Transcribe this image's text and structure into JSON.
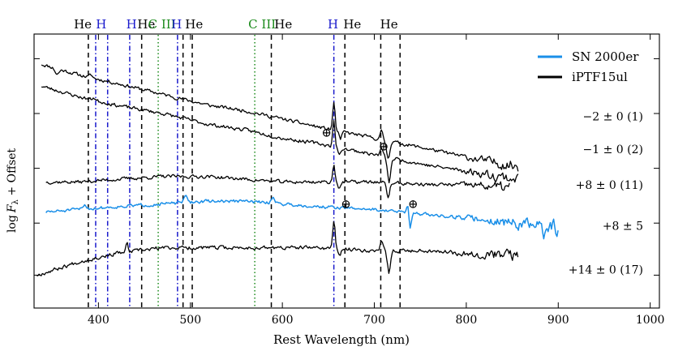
{
  "chart_data": {
    "type": "line",
    "xlabel": "Rest Wavelength (nm)",
    "ylabel": "log Fλ + Offset",
    "ylabel_parts": {
      "prefix": "log",
      "f": "F",
      "sub": "λ",
      "suffix": " + Offset"
    },
    "xlim": [
      330,
      1010
    ],
    "ylim": [
      0,
      100
    ],
    "x_ticks": [
      400,
      500,
      600,
      700,
      800,
      900,
      1000
    ],
    "x_tick_labels": [
      "400",
      "500",
      "600",
      "700",
      "800",
      "900",
      "1000"
    ],
    "y_tick_positions": [
      12,
      31,
      51,
      71,
      91
    ],
    "grid": false,
    "legend": {
      "position": "top-right",
      "entries": [
        {
          "label": "SN 2000er",
          "color": "#1a8fe8"
        },
        {
          "label": "iPTF15ul",
          "color": "#000000"
        }
      ]
    },
    "line_ids": [
      {
        "label": "He",
        "x": 389,
        "color": "#000000",
        "style": "dashed"
      },
      {
        "label": "H",
        "x": 397,
        "color": "#1a1acc",
        "style": "dashdot"
      },
      {
        "label": "H",
        "x": 410,
        "color": "#1a1acc",
        "style": "dashdot"
      },
      {
        "label": "H",
        "x": 434,
        "color": "#1a1acc",
        "style": "dashdot"
      },
      {
        "label": "He",
        "x": 447,
        "color": "#000000",
        "style": "dashed"
      },
      {
        "label": "C III",
        "x": 465,
        "color": "#1a8a1a",
        "style": "dotted"
      },
      {
        "label": "H",
        "x": 486,
        "color": "#1a1acc",
        "style": "dashdot"
      },
      {
        "label": "He",
        "x": 492,
        "color": "#000000",
        "style": "dashed"
      },
      {
        "label": "He",
        "x": 502,
        "color": "#000000",
        "style": "dashed"
      },
      {
        "label": "C III",
        "x": 570,
        "color": "#1a8a1a",
        "style": "dotted"
      },
      {
        "label": "He",
        "x": 588,
        "color": "#000000",
        "style": "dashed"
      },
      {
        "label": "H",
        "x": 656,
        "color": "#1a1acc",
        "style": "dashdot"
      },
      {
        "label": "He",
        "x": 668,
        "color": "#000000",
        "style": "dashed"
      },
      {
        "label": "He",
        "x": 707,
        "color": "#000000",
        "style": "dashed"
      },
      {
        "label": "He",
        "x": 728,
        "color": "#000000",
        "style": "dashed"
      }
    ],
    "line_id_labels": [
      {
        "text": "He",
        "x": 383,
        "color": "#000000"
      },
      {
        "text": "H",
        "x": 403,
        "color": "#1a1acc"
      },
      {
        "text": "H",
        "x": 436,
        "color": "#1a1acc"
      },
      {
        "text": "He",
        "x": 452,
        "color": "#000000"
      },
      {
        "text": "C III",
        "x": 469,
        "color": "#1a8a1a"
      },
      {
        "text": "H",
        "x": 485,
        "color": "#1a1acc"
      },
      {
        "text": "He",
        "x": 504,
        "color": "#000000"
      },
      {
        "text": "C III",
        "x": 578,
        "color": "#1a8a1a"
      },
      {
        "text": "He",
        "x": 601,
        "color": "#000000"
      },
      {
        "text": "H",
        "x": 655,
        "color": "#1a1acc"
      },
      {
        "text": "He",
        "x": 676,
        "color": "#000000"
      },
      {
        "text": "He",
        "x": 716,
        "color": "#000000"
      }
    ],
    "series": [
      {
        "name": "iPTF15ul",
        "epoch_label": "−2 ± 0 (1)",
        "color": "#000000",
        "width": 1.3,
        "noise": 0.55,
        "seed": 11,
        "knots": [
          [
            338,
            89
          ],
          [
            380,
            85
          ],
          [
            420,
            82
          ],
          [
            470,
            78
          ],
          [
            520,
            74
          ],
          [
            560,
            72
          ],
          [
            600,
            69
          ],
          [
            640,
            66
          ],
          [
            700,
            62
          ],
          [
            760,
            58
          ],
          [
            800,
            55
          ],
          [
            850,
            52
          ]
        ],
        "features": [
          [
            355,
            -2.0,
            3
          ],
          [
            392,
            1.0,
            2
          ],
          [
            656,
            10,
            1.8
          ],
          [
            663,
            -3,
            2
          ],
          [
            708,
            3,
            2
          ],
          [
            715,
            -6,
            2.5
          ]
        ],
        "x_range": [
          338,
          857
        ]
      },
      {
        "name": "iPTF15ul",
        "epoch_label": "−1 ± 0 (2)",
        "color": "#000000",
        "width": 1.3,
        "noise": 0.55,
        "seed": 23,
        "knots": [
          [
            338,
            81
          ],
          [
            380,
            77
          ],
          [
            420,
            74
          ],
          [
            470,
            71
          ],
          [
            520,
            67
          ],
          [
            560,
            65
          ],
          [
            600,
            62
          ],
          [
            640,
            60
          ],
          [
            700,
            56
          ],
          [
            760,
            52
          ],
          [
            800,
            50
          ],
          [
            857,
            47
          ]
        ],
        "features": [
          [
            395,
            1.0,
            2
          ],
          [
            656,
            9,
            1.8
          ],
          [
            662,
            -3,
            2
          ],
          [
            708,
            3,
            2
          ],
          [
            716,
            -9,
            2.5
          ]
        ],
        "x_range": [
          338,
          857
        ]
      },
      {
        "name": "iPTF15ul",
        "epoch_label": "+8 ± 0 (11)",
        "color": "#000000",
        "width": 1.3,
        "noise": 0.55,
        "seed": 37,
        "knots": [
          [
            343,
            46
          ],
          [
            380,
            46
          ],
          [
            420,
            47
          ],
          [
            470,
            48
          ],
          [
            520,
            48
          ],
          [
            560,
            47
          ],
          [
            600,
            46
          ],
          [
            640,
            46
          ],
          [
            700,
            46
          ],
          [
            760,
            45
          ],
          [
            800,
            45
          ],
          [
            848,
            44
          ]
        ],
        "features": [
          [
            656,
            6,
            1.8
          ],
          [
            662,
            -2,
            2
          ],
          [
            715,
            -5,
            2.5
          ]
        ],
        "x_range": [
          343,
          848
        ]
      },
      {
        "name": "SN 2000er",
        "epoch_label": "+8 ± 5",
        "color": "#1a8fe8",
        "width": 1.5,
        "noise": 0.5,
        "seed": 51,
        "knots": [
          [
            343,
            35
          ],
          [
            380,
            36
          ],
          [
            420,
            37
          ],
          [
            470,
            38
          ],
          [
            520,
            39
          ],
          [
            560,
            39
          ],
          [
            600,
            38
          ],
          [
            640,
            37
          ],
          [
            700,
            36
          ],
          [
            760,
            34
          ],
          [
            800,
            33
          ],
          [
            850,
            31
          ],
          [
            901,
            29
          ]
        ],
        "features": [
          [
            385,
            1.5,
            3
          ],
          [
            495,
            2.0,
            3
          ],
          [
            590,
            2.0,
            3
          ],
          [
            736,
            3.0,
            1.5
          ],
          [
            739,
            -5.0,
            1.5
          ],
          [
            884,
            -6.0,
            1
          ]
        ],
        "x_range": [
          343,
          901
        ]
      },
      {
        "name": "iPTF15ul",
        "epoch_label": "+14 ± 0 (17)",
        "color": "#000000",
        "width": 1.3,
        "noise": 0.6,
        "seed": 67,
        "knots": [
          [
            333,
            12
          ],
          [
            380,
            17
          ],
          [
            420,
            20
          ],
          [
            470,
            22
          ],
          [
            520,
            22
          ],
          [
            560,
            22
          ],
          [
            600,
            22
          ],
          [
            640,
            22
          ],
          [
            700,
            21
          ],
          [
            760,
            21
          ],
          [
            800,
            20
          ],
          [
            857,
            19
          ]
        ],
        "features": [
          [
            431,
            3,
            1.5
          ],
          [
            656,
            10,
            1.8
          ],
          [
            662,
            -3,
            2
          ],
          [
            708,
            3,
            2
          ],
          [
            716,
            -8,
            2.5
          ]
        ],
        "x_range": [
          333,
          857
        ]
      }
    ],
    "epoch_label_y": [
      70,
      58,
      45,
      30,
      14
    ],
    "telluric_marks": [
      {
        "symbol": "⊕",
        "x": 648,
        "y": 64
      },
      {
        "symbol": "⊕",
        "x": 710,
        "y": 59
      },
      {
        "symbol": "⊕",
        "x": 669,
        "y": 38
      },
      {
        "symbol": "⊕",
        "x": 742,
        "y": 38
      }
    ]
  }
}
